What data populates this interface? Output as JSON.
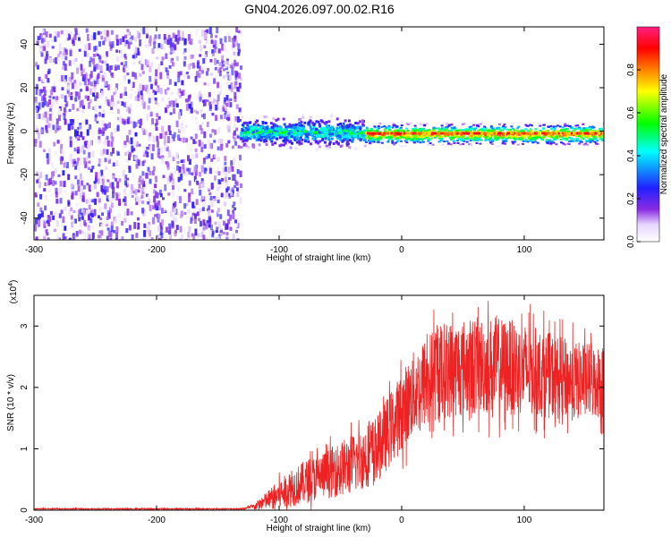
{
  "title": "GN04.2026.097.00.02.R16",
  "chart_data": [
    {
      "type": "heatmap",
      "title": "GN04.2026.097.00.02.R16",
      "xlabel": "Height of straight line (km)",
      "ylabel": "Frequency (Hz)",
      "xlim": [
        -300,
        165
      ],
      "ylim": [
        -50,
        48
      ],
      "xticks": [
        -300,
        -200,
        -100,
        0,
        100
      ],
      "yticks": [
        -40,
        -20,
        0,
        20,
        40
      ],
      "colorbar": {
        "label": "Normalized spectral amplitude",
        "range": [
          0.0,
          1.0
        ],
        "ticks": [
          "0.0",
          "0.2",
          "0.4",
          "0.6",
          "0.8"
        ],
        "colors": [
          "#ffffff",
          "#8a2be2",
          "#2020ff",
          "#00ffff",
          "#00ff00",
          "#ffff00",
          "#ff8000",
          "#ff0000",
          "#ff2080"
        ]
      },
      "regions": [
        {
          "name": "broadband noise",
          "x_range": [
            -300,
            -132
          ],
          "freq_range": [
            -50,
            48
          ],
          "amplitude": 0.1
        },
        {
          "name": "transition band",
          "x_range": [
            -132,
            -30
          ],
          "freq_range": [
            -8,
            8
          ],
          "amplitude": 0.45
        },
        {
          "name": "narrow carrier line",
          "x_range": [
            -30,
            165
          ],
          "freq_center": -1,
          "amplitude": 0.95
        }
      ]
    },
    {
      "type": "line",
      "xlabel": "Height of straight line (km)",
      "ylabel": "SNR (10 * v/v)",
      "yscale_label": "(x10",
      "yscale_exp": "4",
      "yscale_close": ")",
      "xlim": [
        -300,
        165
      ],
      "ylim": [
        0,
        3.5
      ],
      "xticks": [
        -300,
        -200,
        -100,
        0,
        100
      ],
      "yticks": [
        0,
        1,
        2,
        3
      ],
      "series": [
        {
          "name": "SNR",
          "color": "#ee2222",
          "envelope_x": [
            -300,
            -130,
            -120,
            -100,
            -80,
            -60,
            -40,
            -20,
            -10,
            0,
            10,
            20,
            30,
            40,
            60,
            80,
            100,
            120,
            140,
            165
          ],
          "envelope_mean": [
            0.02,
            0.02,
            0.06,
            0.25,
            0.45,
            0.6,
            0.75,
            1.0,
            1.3,
            1.6,
            1.9,
            2.1,
            2.25,
            2.3,
            2.35,
            2.35,
            2.3,
            2.2,
            2.1,
            2.1
          ],
          "envelope_spread": [
            0.01,
            0.01,
            0.05,
            0.25,
            0.35,
            0.4,
            0.5,
            0.55,
            0.6,
            0.65,
            0.7,
            0.75,
            0.8,
            0.8,
            0.8,
            0.8,
            0.75,
            0.7,
            0.65,
            0.6
          ]
        }
      ]
    }
  ]
}
